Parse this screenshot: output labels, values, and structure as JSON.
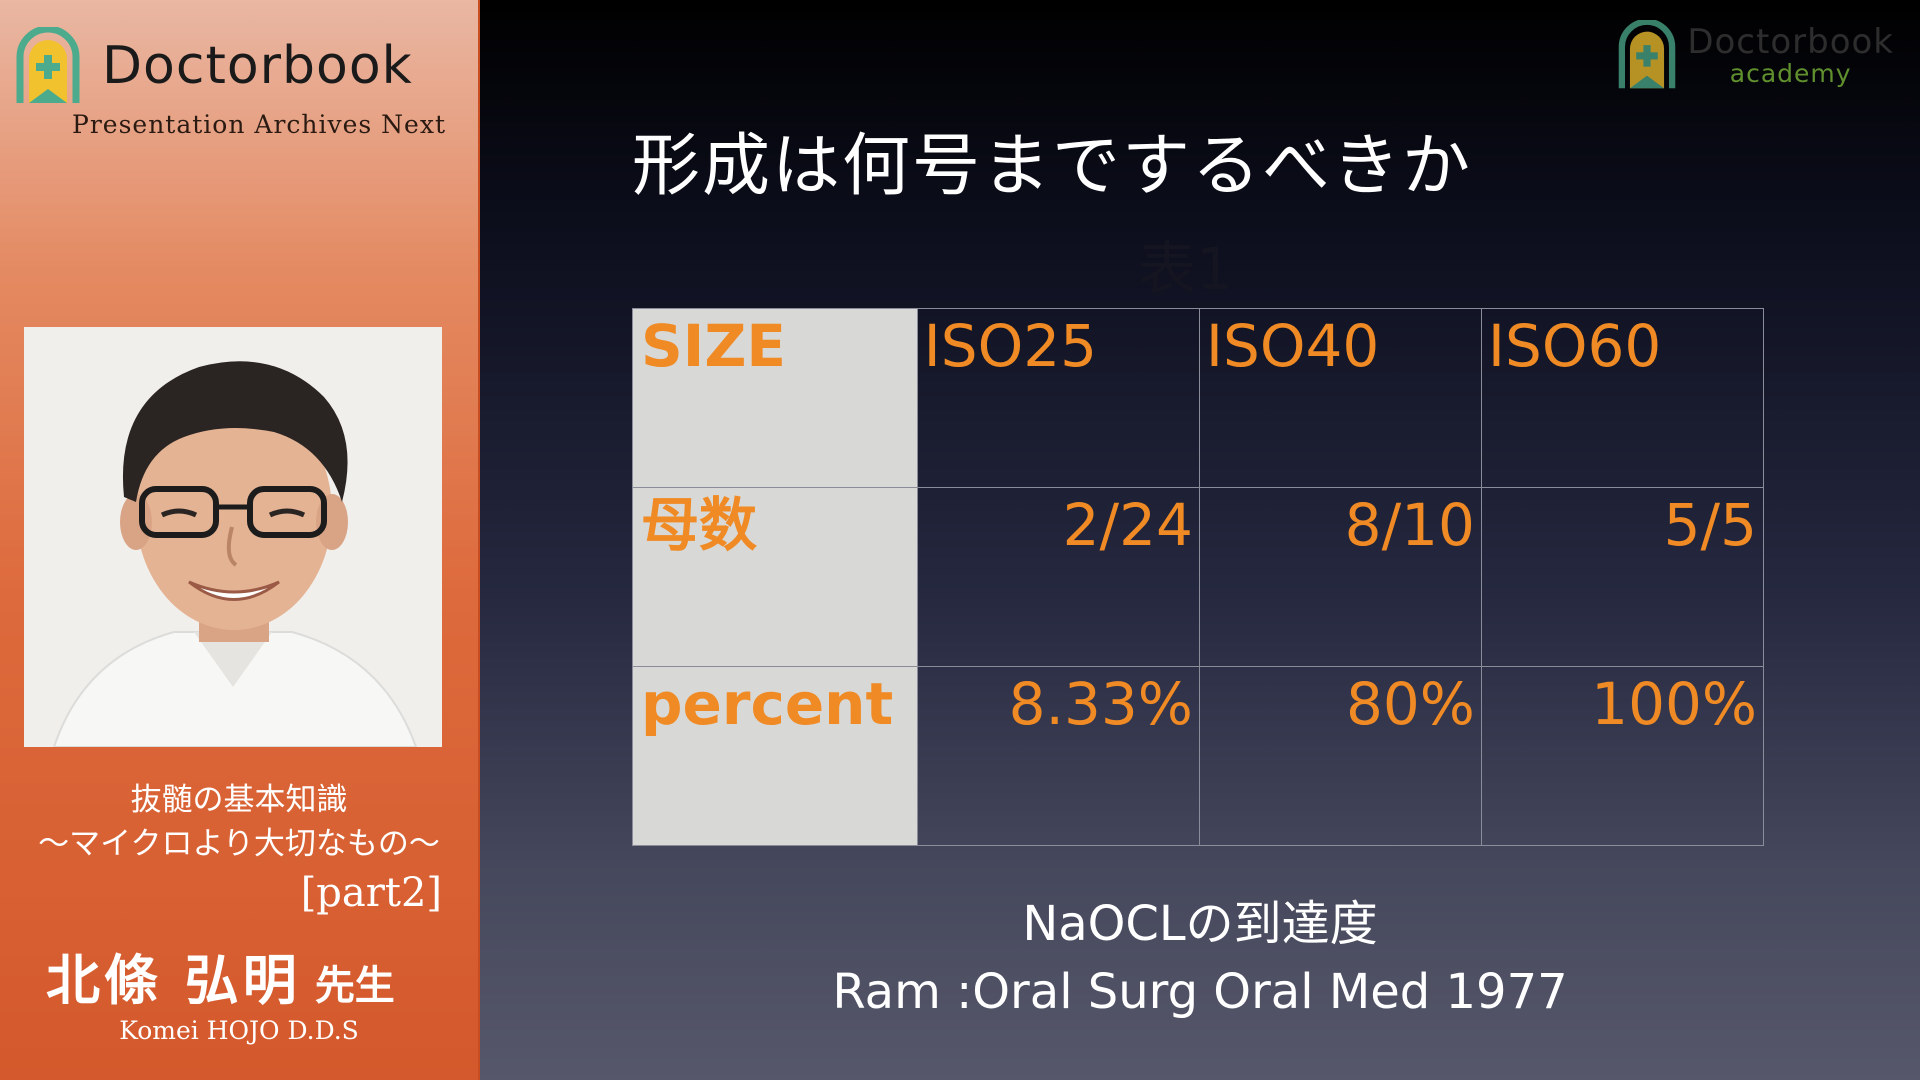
{
  "sidebar": {
    "brand": "Doctorbook",
    "brand_sub": "Presentation Archives Next",
    "lecture_title_line1": "抜髄の基本知識",
    "lecture_title_line2": "〜マイクロより大切なもの〜",
    "lecture_part": "[part2]",
    "speaker_name": "北條 弘明",
    "speaker_honorific": "先生",
    "speaker_roman": "Komei HOJO D.D.S"
  },
  "academy": {
    "brand": "Doctorbook",
    "tag": "academy"
  },
  "slide": {
    "title": "形成は何号までするべきか",
    "table_caption": "表1",
    "source_line1": "NaOCLの到達度",
    "source_line2": "Ram :Oral Surg Oral Med 1977"
  },
  "table": {
    "rows": [
      {
        "header": "SIZE",
        "cells": [
          "ISO25",
          "ISO40",
          "ISO60"
        ]
      },
      {
        "header": "母数",
        "cells": [
          "2/24",
          "8/10",
          "5/5"
        ]
      },
      {
        "header": "percent",
        "cells": [
          "8.33%",
          "80%",
          "100%"
        ]
      }
    ]
  },
  "colors": {
    "table_text": "#f08a24",
    "sidebar_orange": "#dd6a3c",
    "academy_green": "#7fbf3a",
    "logo_gold": "#f2c12e"
  },
  "icons": {
    "logo": "arch-plus-badge-icon",
    "academy_logo": "arch-plus-badge-icon"
  }
}
